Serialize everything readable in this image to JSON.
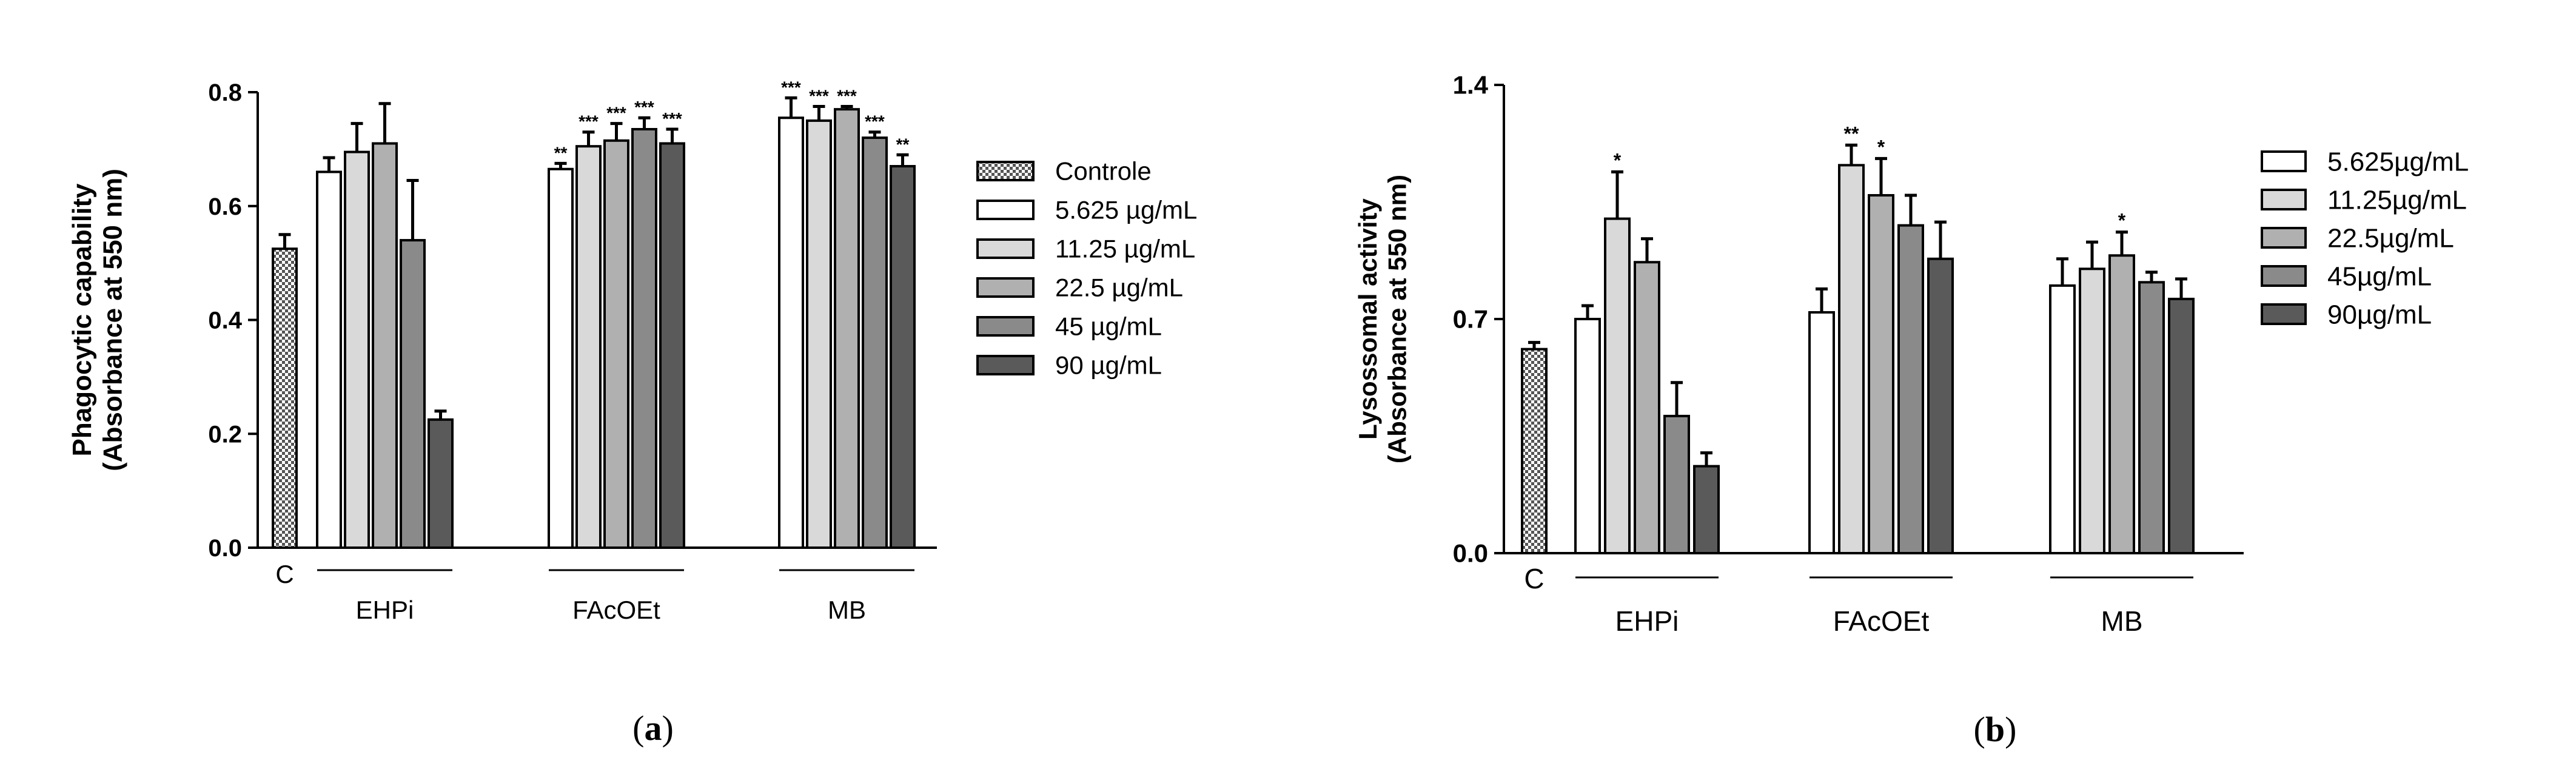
{
  "chart_data": [
    {
      "type": "bar",
      "panel_label": "(a)",
      "title": "",
      "ylabel": "Phagocytic capability\n(Absorbance at 550 nm)",
      "xlabel": "",
      "ylim": [
        0,
        0.8
      ],
      "yticks": [
        "0.0",
        "0.2",
        "0.4",
        "0.6",
        "0.8"
      ],
      "control": {
        "label": "C",
        "value": 0.525,
        "error": 0.025,
        "color": "#dcdcdc",
        "pattern": "checker"
      },
      "categories": [
        "EHPi",
        "FAcOEt",
        "MB"
      ],
      "legend": {
        "position": "right",
        "entries": [
          "Controle",
          "5.625 µg/mL",
          "11.25 µg/mL",
          "22.5 µg/mL",
          "45 µg/mL",
          "90 µg/mL"
        ]
      },
      "series": [
        {
          "name": "5.625 µg/mL",
          "color": "#ffffff",
          "values": [
            0.66,
            0.665,
            0.755
          ],
          "errors": [
            0.025,
            0.01,
            0.035
          ],
          "sig": [
            "",
            "**",
            "***"
          ]
        },
        {
          "name": "11.25 µg/mL",
          "color": "#d9d9d9",
          "values": [
            0.695,
            0.705,
            0.75
          ],
          "errors": [
            0.05,
            0.025,
            0.025
          ],
          "sig": [
            "",
            "***",
            "***"
          ]
        },
        {
          "name": "22.5 µg/mL",
          "color": "#b0b0b0",
          "values": [
            0.71,
            0.715,
            0.77
          ],
          "errors": [
            0.07,
            0.03,
            0.005
          ],
          "sig": [
            "",
            "***",
            "***"
          ]
        },
        {
          "name": "45 µg/mL",
          "color": "#8a8a8a",
          "values": [
            0.54,
            0.735,
            0.72
          ],
          "errors": [
            0.105,
            0.02,
            0.01
          ],
          "sig": [
            "",
            "***",
            "***"
          ]
        },
        {
          "name": "90 µg/mL",
          "color": "#5a5a5a",
          "values": [
            0.225,
            0.71,
            0.67
          ],
          "errors": [
            0.015,
            0.025,
            0.02
          ],
          "sig": [
            "",
            "***",
            "**"
          ]
        }
      ]
    },
    {
      "type": "bar",
      "panel_label": "(b)",
      "title": "",
      "ylabel": "Lysossomal activity\n(Absorbance at 550 nm)",
      "xlabel": "",
      "ylim": [
        0,
        1.4
      ],
      "yticks": [
        "0.0",
        "0.7",
        "1.4"
      ],
      "control": {
        "label": "C",
        "value": 0.61,
        "error": 0.02,
        "color": "#dcdcdc",
        "pattern": "checker"
      },
      "categories": [
        "EHPi",
        "FAcOEt",
        "MB"
      ],
      "legend": {
        "position": "right",
        "entries": [
          "5.625µg/mL",
          "11.25µg/mL",
          "22.5µg/mL",
          "45µg/mL",
          "90µg/mL"
        ]
      },
      "series": [
        {
          "name": "5.625µg/mL",
          "color": "#ffffff",
          "values": [
            0.7,
            0.72,
            0.8
          ],
          "errors": [
            0.04,
            0.07,
            0.08
          ],
          "sig": [
            "",
            "",
            ""
          ]
        },
        {
          "name": "11.25µg/mL",
          "color": "#d9d9d9",
          "values": [
            1.0,
            1.16,
            0.85
          ],
          "errors": [
            0.14,
            0.06,
            0.08
          ],
          "sig": [
            "*",
            "**",
            ""
          ]
        },
        {
          "name": "22.5µg/mL",
          "color": "#b0b0b0",
          "values": [
            0.87,
            1.07,
            0.89
          ],
          "errors": [
            0.07,
            0.11,
            0.07
          ],
          "sig": [
            "",
            "*",
            "*"
          ]
        },
        {
          "name": "45µg/mL",
          "color": "#8a8a8a",
          "values": [
            0.41,
            0.98,
            0.81
          ],
          "errors": [
            0.1,
            0.09,
            0.03
          ],
          "sig": [
            "",
            "",
            ""
          ]
        },
        {
          "name": "90µg/mL",
          "color": "#5a5a5a",
          "values": [
            0.26,
            0.88,
            0.76
          ],
          "errors": [
            0.04,
            0.11,
            0.06
          ],
          "sig": [
            "",
            "",
            ""
          ]
        }
      ]
    }
  ]
}
